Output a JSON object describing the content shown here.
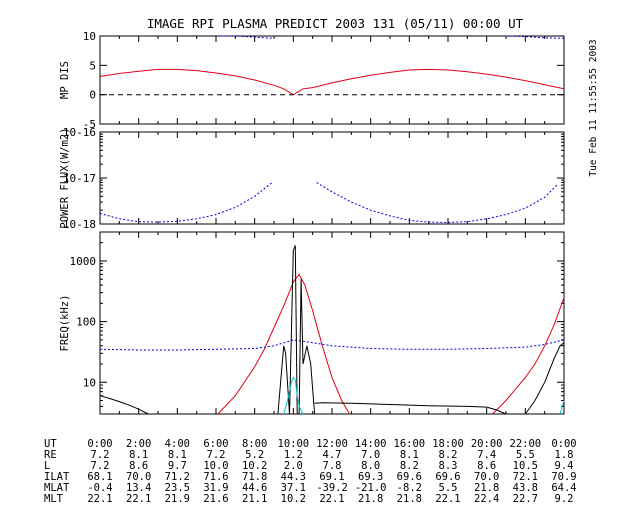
{
  "title": "IMAGE  RPI PLASMA PREDICT 2003 131 (05/11) 00:00 UT",
  "timestamp": "Tue Feb 11 11:55:55 2003",
  "colors": {
    "red": "#e0001a",
    "blue": "#0000e0",
    "black": "#000000",
    "cyan": "#00c8c8"
  },
  "chart_data": [
    {
      "type": "line",
      "ylabel": "MP DIS",
      "xlim": [
        0,
        24
      ],
      "ylim": [
        -5,
        10
      ],
      "yticks": [
        {
          "v": -5,
          "label": "-5"
        },
        {
          "v": 0,
          "label": "0"
        },
        {
          "v": 5,
          "label": "5"
        },
        {
          "v": 10,
          "label": "10"
        }
      ],
      "series": [
        {
          "color": "red",
          "style": "solid",
          "x": [
            0,
            1,
            2,
            3,
            4,
            5,
            6,
            7,
            8,
            9,
            9.5,
            10,
            10.5,
            11,
            12,
            13,
            14,
            15,
            16,
            17,
            18,
            19,
            20,
            21,
            22,
            23,
            24
          ],
          "y": [
            3.1,
            3.6,
            4.0,
            4.3,
            4.3,
            4.1,
            3.7,
            3.2,
            2.5,
            1.6,
            1.0,
            0,
            1.0,
            1.2,
            2.0,
            2.7,
            3.3,
            3.8,
            4.2,
            4.3,
            4.2,
            3.9,
            3.5,
            3.0,
            2.4,
            1.7,
            1.0
          ]
        },
        {
          "color": "blue",
          "style": "dashed",
          "x": [
            6.3,
            7,
            7.5,
            8,
            8.5,
            9
          ],
          "y": [
            10.4,
            10.1,
            9.9,
            9.8,
            9.7,
            9.6
          ]
        },
        {
          "color": "blue",
          "style": "dashed",
          "x": [
            21,
            22,
            23,
            24
          ],
          "y": [
            10.2,
            9.9,
            9.7,
            9.6
          ]
        },
        {
          "color": "black",
          "style": "dashed",
          "x": [
            0,
            24
          ],
          "y": [
            0,
            0
          ]
        }
      ]
    },
    {
      "type": "line",
      "ylabel": "POWER FLUX(W/m2)",
      "log": true,
      "xlim": [
        0,
        24
      ],
      "ylim": [
        1e-18,
        1e-16
      ],
      "yticks": [
        {
          "v": 1e-18,
          "label": "10-18"
        },
        {
          "v": 1e-17,
          "label": "10-17"
        },
        {
          "v": 1e-16,
          "label": "10-16"
        }
      ],
      "series": [
        {
          "color": "blue",
          "style": "dashed",
          "x": [
            0,
            1,
            2,
            3,
            4,
            5,
            6,
            7,
            8,
            8.9
          ],
          "y": [
            1.7e-18,
            1.3e-18,
            1.12e-18,
            1.1e-18,
            1.15e-18,
            1.3e-18,
            1.6e-18,
            2.3e-18,
            4e-18,
            8e-18
          ]
        },
        {
          "color": "blue",
          "style": "dashed",
          "x": [
            11.2,
            12,
            13,
            14,
            15,
            16,
            17,
            18,
            19,
            20,
            21,
            22,
            23,
            23.7
          ],
          "y": [
            8e-18,
            5e-18,
            3e-18,
            2e-18,
            1.5e-18,
            1.2e-18,
            1.1e-18,
            1.08e-18,
            1.12e-18,
            1.3e-18,
            1.6e-18,
            2.2e-18,
            3.8e-18,
            7.5e-18
          ]
        }
      ]
    },
    {
      "type": "line",
      "ylabel": "FREQ(kHz)",
      "log": true,
      "xlim": [
        0,
        24
      ],
      "ylim": [
        3,
        3000
      ],
      "yticks": [
        {
          "v": 10,
          "label": "10"
        },
        {
          "v": 100,
          "label": "100"
        },
        {
          "v": 1000,
          "label": "1000"
        }
      ],
      "series": [
        {
          "color": "red",
          "style": "solid",
          "x": [
            6.1,
            7,
            8,
            8.5,
            9,
            9.5,
            10,
            10.3,
            10.6,
            11,
            11.5,
            12,
            12.5,
            12.9
          ],
          "y": [
            3,
            6,
            18,
            35,
            80,
            180,
            450,
            600,
            400,
            150,
            40,
            12,
            5,
            3
          ]
        },
        {
          "color": "red",
          "style": "solid",
          "x": [
            20.3,
            21,
            22,
            22.5,
            23,
            23.5,
            24
          ],
          "y": [
            3,
            5,
            12,
            20,
            40,
            90,
            250
          ]
        },
        {
          "color": "blue",
          "style": "dashed",
          "x": [
            0,
            2,
            4,
            6,
            8,
            9,
            10,
            11,
            12,
            14,
            16,
            18,
            20,
            22,
            23,
            24
          ],
          "y": [
            35,
            34,
            34,
            35,
            36,
            40,
            50,
            45,
            40,
            36,
            35,
            35,
            36,
            38,
            42,
            50
          ]
        },
        {
          "color": "black",
          "style": "solid",
          "x": [
            0,
            0.5,
            1,
            1.5,
            2,
            2.5
          ],
          "y": [
            6,
            5.4,
            4.8,
            4.2,
            3.6,
            3
          ]
        },
        {
          "color": "black",
          "style": "solid",
          "x": [
            9.2,
            9.5,
            9.6,
            9.8,
            10.0,
            10.1,
            10.2,
            10.3,
            10.4,
            10.5,
            10.7,
            10.9,
            11.1
          ],
          "y": [
            3,
            40,
            30,
            3,
            1500,
            1800,
            3,
            3,
            500,
            20,
            40,
            20,
            3
          ]
        },
        {
          "color": "black",
          "style": "solid",
          "x": [
            11.1,
            11.5,
            13,
            15,
            17,
            19,
            20,
            20.5,
            21
          ],
          "y": [
            4.5,
            4.6,
            4.5,
            4.3,
            4.1,
            4.0,
            3.9,
            3.5,
            3
          ]
        },
        {
          "color": "black",
          "style": "solid",
          "x": [
            22,
            22.5,
            23,
            23.5,
            23.8,
            24
          ],
          "y": [
            3,
            5,
            10,
            25,
            40,
            45
          ]
        },
        {
          "color": "cyan",
          "style": "solid",
          "x": [
            9.5,
            9.7,
            9.9,
            10,
            10.1,
            10.2,
            10.3,
            10.5
          ],
          "y": [
            3,
            5,
            10,
            12,
            11,
            6,
            4,
            3
          ]
        },
        {
          "color": "cyan",
          "style": "solid",
          "x": [
            23.8,
            24
          ],
          "y": [
            3,
            5
          ]
        }
      ]
    }
  ],
  "xticks": [
    "0:00",
    "2:00",
    "4:00",
    "6:00",
    "8:00",
    "10:00",
    "12:00",
    "14:00",
    "16:00",
    "18:00",
    "20:00",
    "22:00",
    "0:00"
  ],
  "table": [
    {
      "label": "UT",
      "values": []
    },
    {
      "label": "RE",
      "values": [
        "7.2",
        "8.1",
        "8.1",
        "7.2",
        "5.2",
        "1.2",
        "4.7",
        "7.0",
        "8.1",
        "8.2",
        "7.4",
        "5.5",
        "1.8"
      ]
    },
    {
      "label": "L",
      "values": [
        "7.2",
        "8.6",
        "9.7",
        "10.0",
        "10.2",
        "2.0",
        "7.8",
        "8.0",
        "8.2",
        "8.3",
        "8.6",
        "10.5",
        "9.4"
      ]
    },
    {
      "label": "ILAT",
      "values": [
        "68.1",
        "70.0",
        "71.2",
        "71.6",
        "71.8",
        "44.3",
        "69.1",
        "69.3",
        "69.6",
        "69.6",
        "70.0",
        "72.1",
        "70.9"
      ]
    },
    {
      "label": "MLAT",
      "values": [
        "-0.4",
        "13.4",
        "23.5",
        "31.9",
        "44.6",
        "37.1",
        "-39.2",
        "-21.0",
        "-8.2",
        "5.5",
        "21.8",
        "43.8",
        "64.4"
      ]
    },
    {
      "label": "MLT",
      "values": [
        "22.1",
        "22.1",
        "21.9",
        "21.6",
        "21.1",
        "10.2",
        "22.1",
        "21.8",
        "21.8",
        "22.1",
        "22.4",
        "22.7",
        "9.2"
      ]
    }
  ]
}
